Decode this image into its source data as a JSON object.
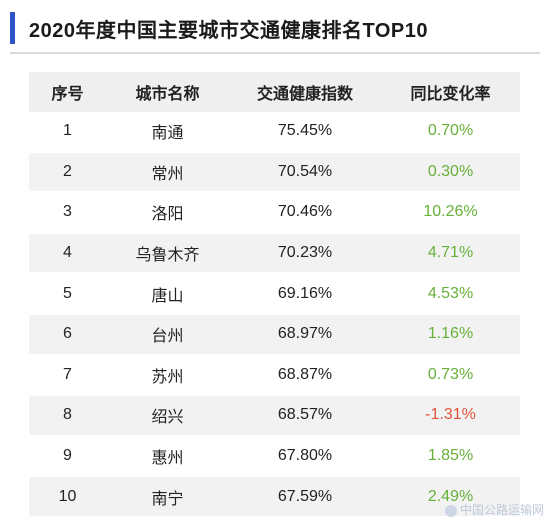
{
  "title": "2020年度中国主要城市交通健康排名TOP10",
  "table": {
    "headers": [
      "序号",
      "城市名称",
      "交通健康指数",
      "同比变化率"
    ],
    "rows": [
      {
        "rank": "1",
        "city": "南通",
        "index": "75.45%",
        "change": "0.70%",
        "trend": "pos"
      },
      {
        "rank": "2",
        "city": "常州",
        "index": "70.54%",
        "change": "0.30%",
        "trend": "pos"
      },
      {
        "rank": "3",
        "city": "洛阳",
        "index": "70.46%",
        "change": "10.26%",
        "trend": "pos"
      },
      {
        "rank": "4",
        "city": "乌鲁木齐",
        "index": "70.23%",
        "change": "4.71%",
        "trend": "pos"
      },
      {
        "rank": "5",
        "city": "唐山",
        "index": "69.16%",
        "change": "4.53%",
        "trend": "pos"
      },
      {
        "rank": "6",
        "city": "台州",
        "index": "68.97%",
        "change": "1.16%",
        "trend": "pos"
      },
      {
        "rank": "7",
        "city": "苏州",
        "index": "68.87%",
        "change": "0.73%",
        "trend": "pos"
      },
      {
        "rank": "8",
        "city": "绍兴",
        "index": "68.57%",
        "change": "-1.31%",
        "trend": "neg"
      },
      {
        "rank": "9",
        "city": "惠州",
        "index": "67.80%",
        "change": "1.85%",
        "trend": "pos"
      },
      {
        "rank": "10",
        "city": "南宁",
        "index": "67.59%",
        "change": "2.49%",
        "trend": "pos"
      }
    ]
  },
  "colors": {
    "accent": "#2f54c9",
    "positive": "#67b03a",
    "negative": "#e0543b"
  },
  "watermark": "中国公路运输网"
}
